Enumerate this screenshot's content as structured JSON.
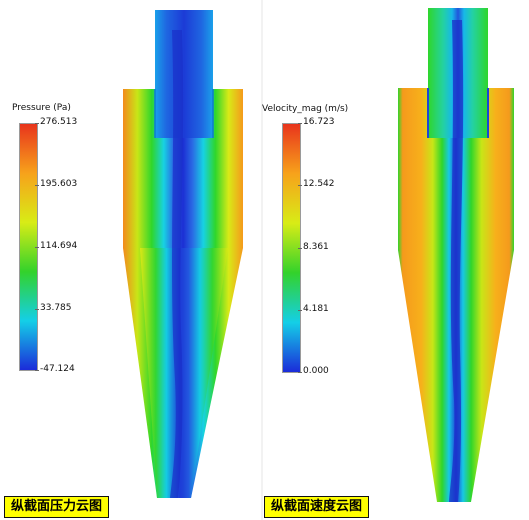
{
  "pressure_panel": {
    "legend_title": "Pressure (Pa)",
    "ticks": [
      "276.513",
      "195.603",
      "114.694",
      "33.785",
      "-47.124"
    ],
    "caption": "纵截面压力云图",
    "colormap": [
      "#e8341c",
      "#f7a21b",
      "#d8ec16",
      "#33d22b",
      "#14cfe7",
      "#1b2bd9"
    ]
  },
  "velocity_panel": {
    "legend_title": "Velocity_mag (m/s)",
    "ticks": [
      "16.723",
      "12.542",
      "8.361",
      "4.181",
      "0.000"
    ],
    "caption": "纵截面速度云图",
    "colormap": [
      "#e8341c",
      "#f7a21b",
      "#d8ec16",
      "#33d22b",
      "#14cfe7",
      "#1b2bd9"
    ]
  }
}
